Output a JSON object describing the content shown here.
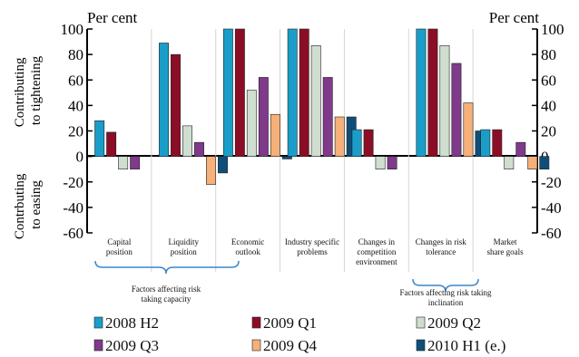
{
  "chart_data": {
    "type": "bar",
    "ylim": [
      -60,
      100
    ],
    "y_ticks": [
      -60,
      -40,
      -20,
      0,
      20,
      40,
      60,
      80,
      100
    ],
    "unit_label_left": "Per cent",
    "unit_label_right": "Per cent",
    "ylabel_upper": [
      "Contributing",
      "to tightening"
    ],
    "ylabel_lower": [
      "Contrbuting",
      "to easing"
    ],
    "categories": [
      [
        "Capital",
        "position"
      ],
      [
        "Liquidity",
        "position"
      ],
      [
        "Economic",
        "outlook"
      ],
      [
        "Industry specific",
        "problems"
      ],
      [
        "Changes in",
        "competition",
        "environment"
      ],
      [
        "Changes in risk",
        "tolerance"
      ],
      [
        "Market",
        "share goals"
      ]
    ],
    "groups": [
      {
        "label": [
          "Factors affecting risk",
          "taking capacity"
        ]
      },
      {
        "label": [
          "Factors affecting risk taking",
          "inclination"
        ]
      }
    ],
    "series": [
      {
        "name": "2008 H2",
        "color": "#1a9ec9",
        "values": [
          28,
          89,
          100,
          100,
          21,
          100,
          21
        ]
      },
      {
        "name": "2009 Q1",
        "color": "#8b0e26",
        "values": [
          19,
          80,
          100,
          100,
          21,
          100,
          21
        ]
      },
      {
        "name": "2009 Q2",
        "color": "#cfdecf",
        "values": [
          -10,
          24,
          52,
          87,
          -10,
          87,
          -10
        ]
      },
      {
        "name": "2009 Q3",
        "color": "#7f3a8a",
        "values": [
          -10,
          11,
          62,
          62,
          -10,
          73,
          11
        ]
      },
      {
        "name": "2009 Q4",
        "color": "#f6b07a",
        "values": [
          0,
          -22,
          33,
          31,
          0,
          42,
          -10
        ]
      },
      {
        "name": "2010 H1 (e.)",
        "color": "#0f4e78",
        "values": [
          0,
          -13,
          -2,
          31,
          0,
          20,
          -10
        ]
      }
    ]
  }
}
